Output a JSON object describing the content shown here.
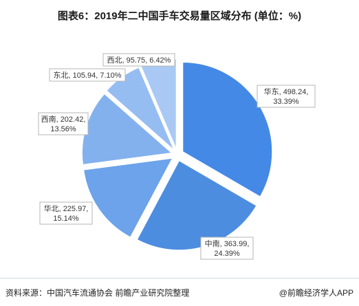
{
  "title": "图表6：2019年二中国手车交易量区域分布 (单位：%)",
  "footer": {
    "source": "资料来源：中国汽车流通协会 前瞻产业研究院整理",
    "brand": "@前瞻经济学人APP"
  },
  "colors": {
    "华东": "#4589e6",
    "中南": "#4d8de0",
    "华北": "#6ca3ea",
    "西南": "#83b1ee",
    "东北": "#96bdf1",
    "西北": "#a9c9f4",
    "label_border": "#b5b5b5"
  },
  "chart_data": {
    "type": "pie",
    "title": "图表6：2019年二中国手车交易量区域分布 (单位：%)",
    "unit": "%",
    "slices": [
      {
        "name": "华东",
        "value": 498.24,
        "percent": 33.39,
        "line1": "华东, 498.24,",
        "line2": "33.39%"
      },
      {
        "name": "中南",
        "value": 363.99,
        "percent": 24.39,
        "line1": "中南, 363.99,",
        "line2": "24.39%"
      },
      {
        "name": "华北",
        "value": 225.97,
        "percent": 15.14,
        "line1": "华北, 225.97,",
        "line2": "15.14%"
      },
      {
        "name": "西南",
        "value": 202.42,
        "percent": 13.56,
        "line1": "西南, 202.42,",
        "line2": "13.56%"
      },
      {
        "name": "东北",
        "value": 105.94,
        "percent": 7.1,
        "line1": "东北, 105.94, 7.10%",
        "line2": ""
      },
      {
        "name": "西北",
        "value": 95.75,
        "percent": 6.42,
        "line1": "西北, 95.75, 6.42%",
        "line2": ""
      }
    ]
  }
}
